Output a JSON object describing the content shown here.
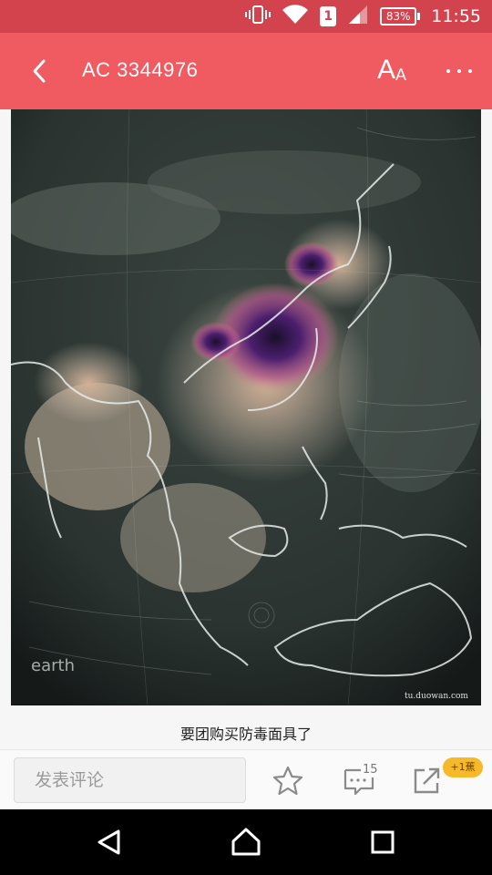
{
  "status_bar": {
    "sim_slot": "1",
    "battery": "83%",
    "battery_level": 0.83,
    "time": "11:55",
    "icons": [
      "vibrate-icon",
      "wifi-icon",
      "sim-icon",
      "signal-icon",
      "battery-icon"
    ]
  },
  "app_bar": {
    "title": "AC 3344976",
    "font_icon_big": "A",
    "font_icon_small": "A",
    "icons": [
      "back-arrow-icon",
      "font-size-icon",
      "more-dots-icon"
    ],
    "color": "#f05a61"
  },
  "article": {
    "image_label": "earth",
    "image_watermark": "tu.duowan.com",
    "caption": "要团购买防毒面具了"
  },
  "comment_bar": {
    "placeholder": "发表评论",
    "comment_count": "15",
    "reward_badge": "+1蕉",
    "icons": [
      "star-icon",
      "comment-icon",
      "share-icon"
    ]
  },
  "nav_bar": {
    "icons": [
      "nav-back-icon",
      "nav-home-icon",
      "nav-recents-icon"
    ]
  }
}
